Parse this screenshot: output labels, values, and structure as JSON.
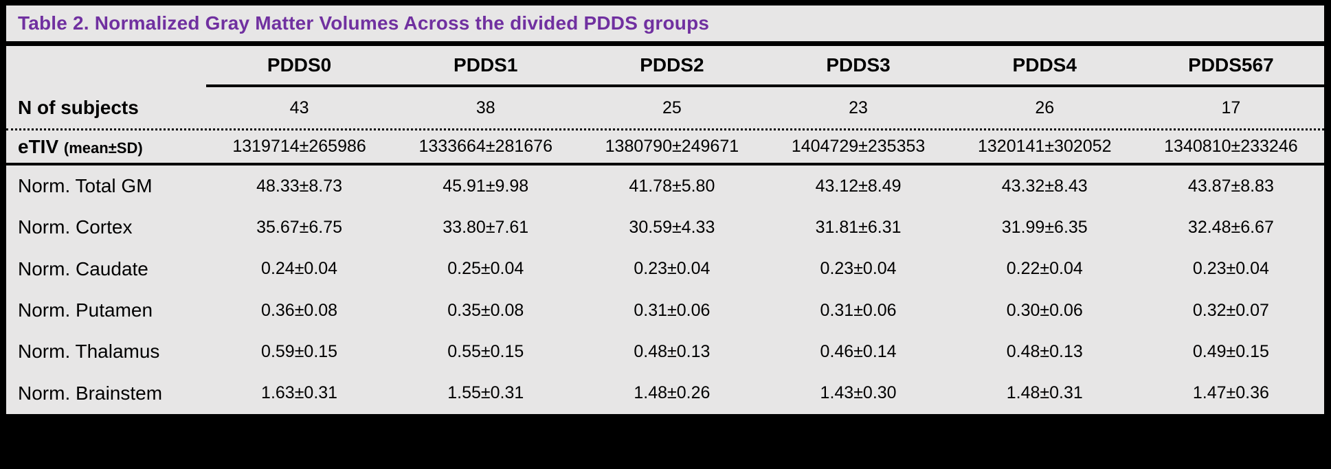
{
  "title": "Table 2. Normalized Gray Matter Volumes Across the divided PDDS groups",
  "colors": {
    "title_purple": "#7030a0",
    "surface_gray": "#e7e6e6",
    "border_black": "#000000"
  },
  "table": {
    "column_headers": [
      "PDDS0",
      "PDDS1",
      "PDDS2",
      "PDDS3",
      "PDDS4",
      "PDDS567"
    ],
    "rows": [
      {
        "label": "N of subjects",
        "label_note": "",
        "bold": true,
        "values": [
          "43",
          "38",
          "25",
          "23",
          "26",
          "17"
        ]
      },
      {
        "label": "eTIV",
        "label_note": "(mean±SD)",
        "bold": true,
        "values": [
          "1319714±265986",
          "1333664±281676",
          "1380790±249671",
          "1404729±235353",
          "1320141±302052",
          "1340810±233246"
        ]
      },
      {
        "label": "Norm. Total GM",
        "label_note": "",
        "bold": false,
        "values": [
          "48.33±8.73",
          "45.91±9.98",
          "41.78±5.80",
          "43.12±8.49",
          "43.32±8.43",
          "43.87±8.83"
        ]
      },
      {
        "label": "Norm. Cortex",
        "label_note": "",
        "bold": false,
        "values": [
          "35.67±6.75",
          "33.80±7.61",
          "30.59±4.33",
          "31.81±6.31",
          "31.99±6.35",
          "32.48±6.67"
        ]
      },
      {
        "label": "Norm. Caudate",
        "label_note": "",
        "bold": false,
        "values": [
          "0.24±0.04",
          "0.25±0.04",
          "0.23±0.04",
          "0.23±0.04",
          "0.22±0.04",
          "0.23±0.04"
        ]
      },
      {
        "label": "Norm. Putamen",
        "label_note": "",
        "bold": false,
        "values": [
          "0.36±0.08",
          "0.35±0.08",
          "0.31±0.06",
          "0.31±0.06",
          "0.30±0.06",
          "0.32±0.07"
        ]
      },
      {
        "label": "Norm. Thalamus",
        "label_note": "",
        "bold": false,
        "values": [
          "0.59±0.15",
          "0.55±0.15",
          "0.48±0.13",
          "0.46±0.14",
          "0.48±0.13",
          "0.49±0.15"
        ]
      },
      {
        "label": "Norm. Brainstem",
        "label_note": "",
        "bold": false,
        "values": [
          "1.63±0.31",
          "1.55±0.31",
          "1.48±0.26",
          "1.43±0.30",
          "1.48±0.31",
          "1.47±0.36"
        ]
      }
    ]
  }
}
